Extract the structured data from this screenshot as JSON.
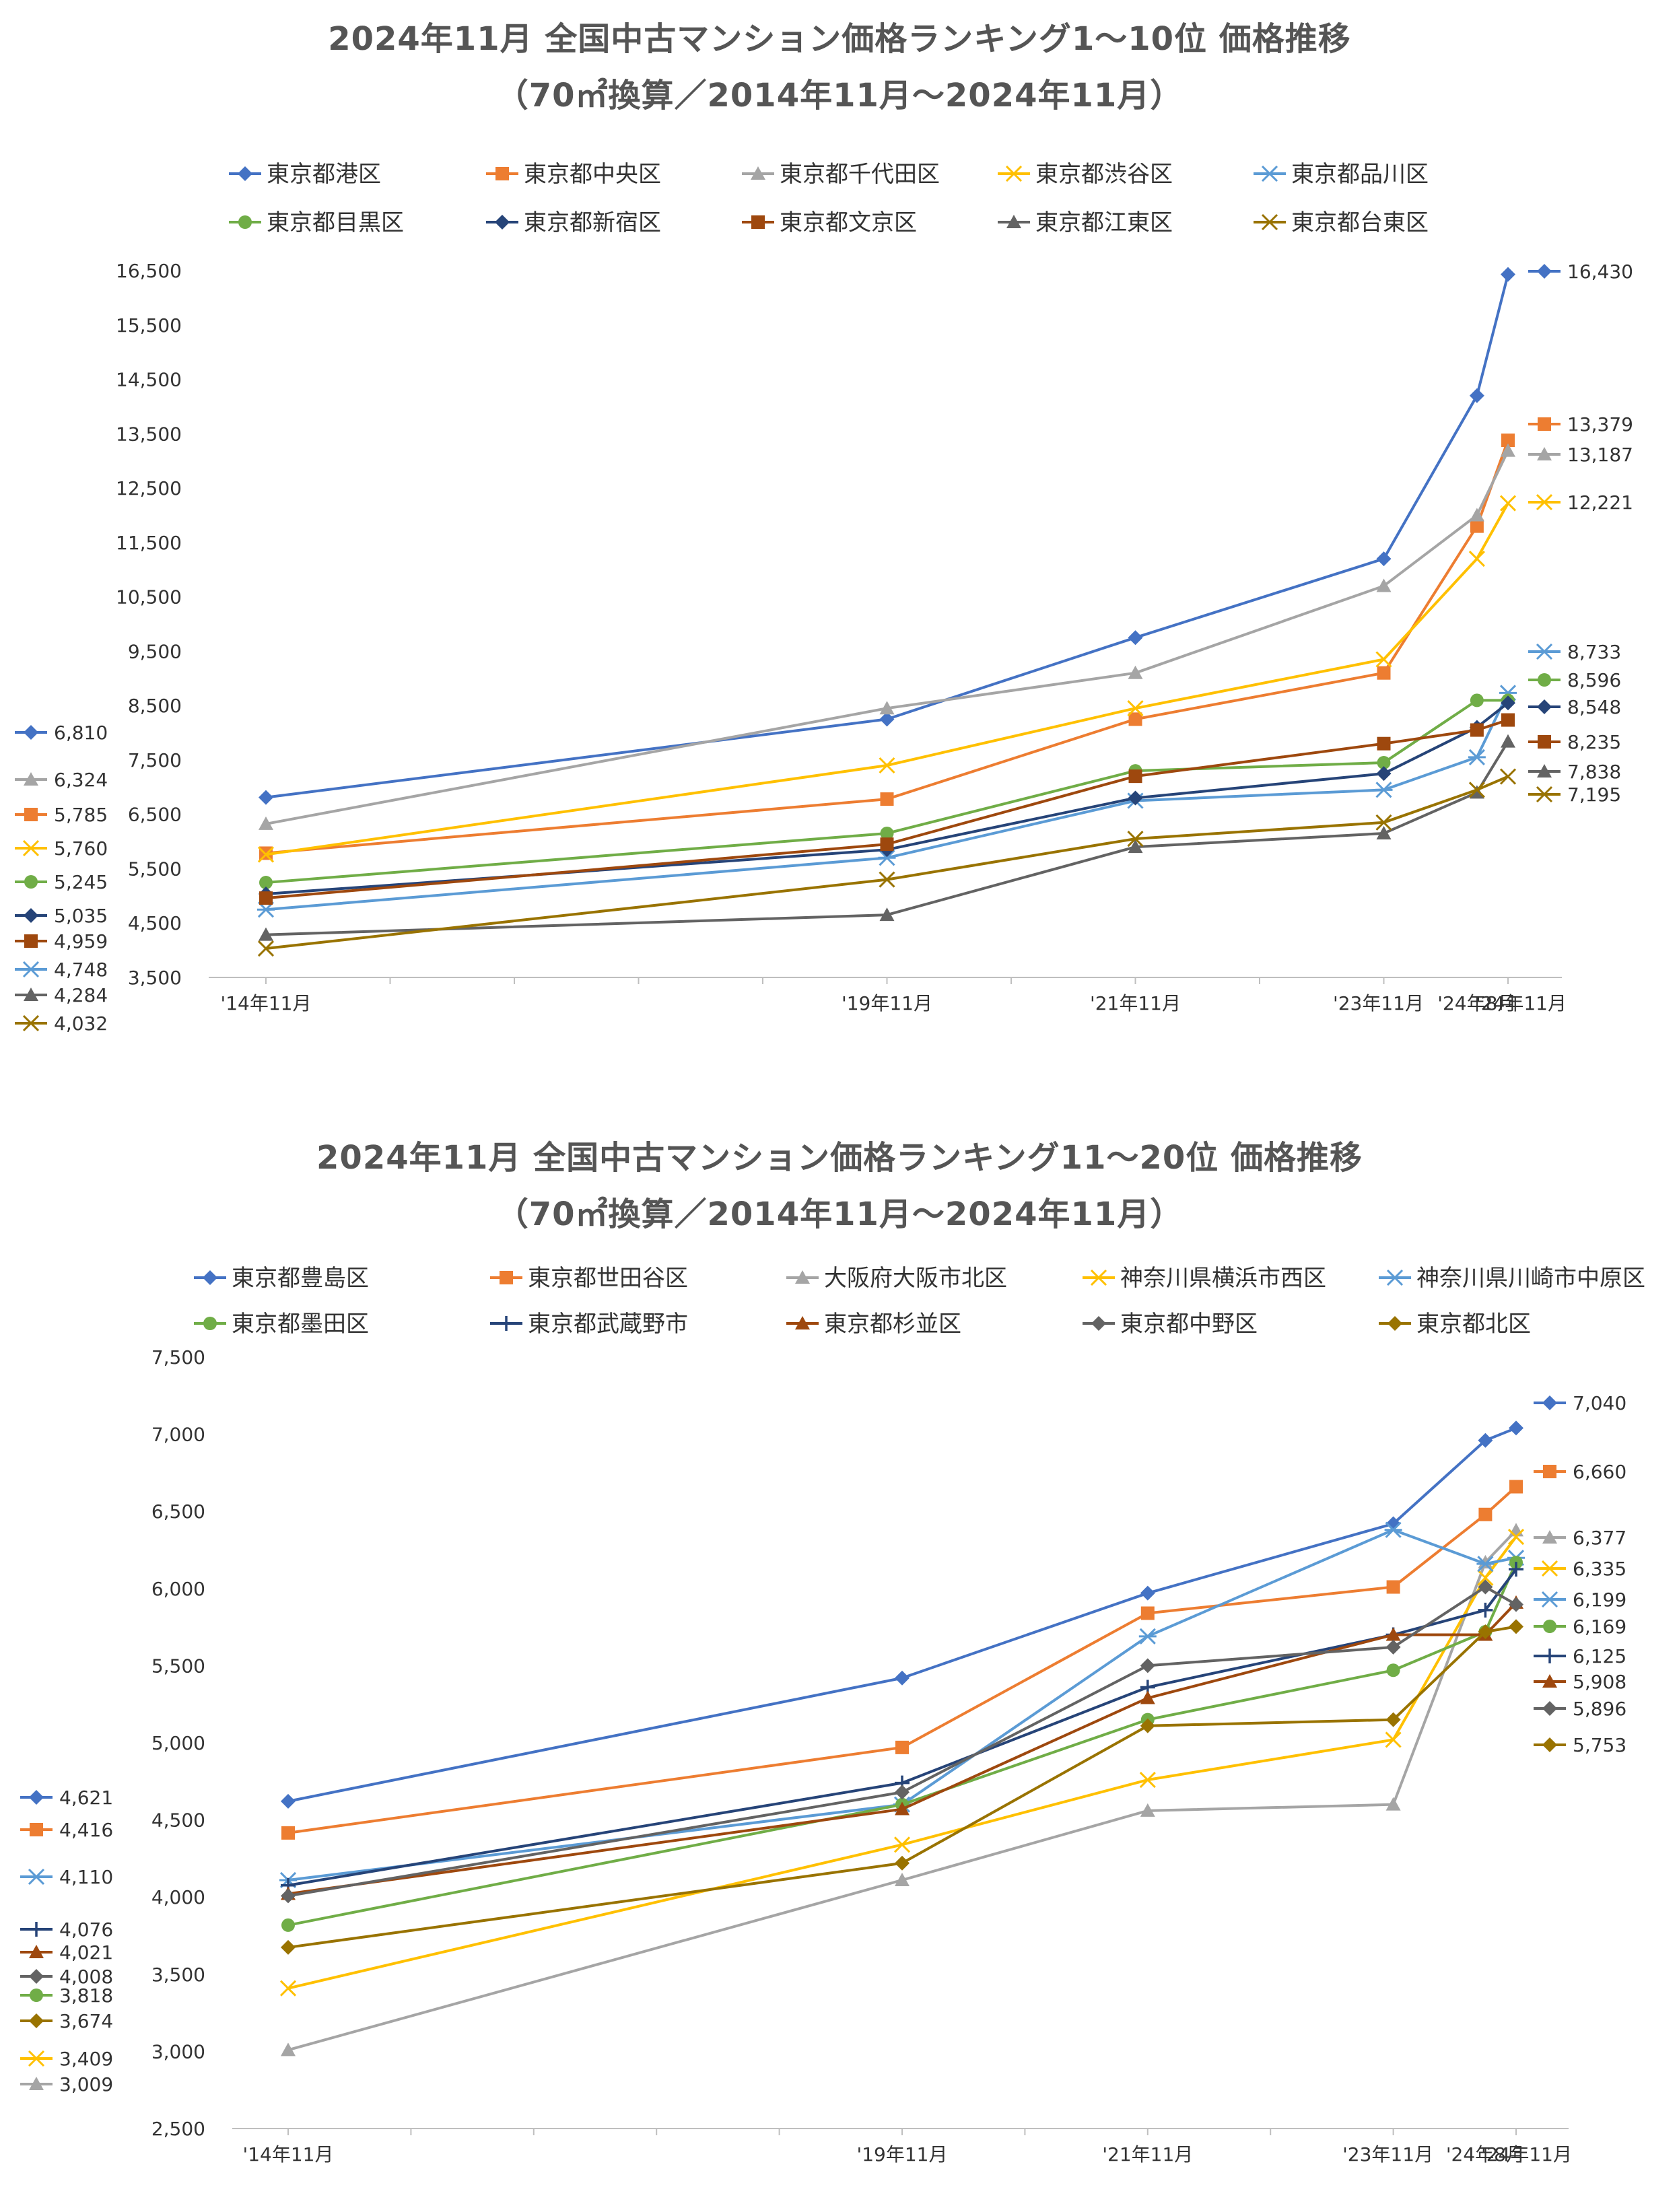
{
  "chart_data": [
    {
      "type": "line",
      "title": "2024年11月 全国中古マンション価格ランキング1～10位 価格推移",
      "subtitle": "（70㎡換算／2014年11月～2024年11月）",
      "categories": [
        "'14年11月",
        "'19年11月",
        "'21年11月",
        "'23年11月",
        "'24年8月",
        "'24年11月"
      ],
      "x_positions": [
        0,
        5,
        7,
        9,
        9.75,
        10
      ],
      "ylim": [
        3500,
        16500
      ],
      "yticks": [
        "3,500",
        "4,500",
        "5,500",
        "6,500",
        "7,500",
        "8,500",
        "9,500",
        "10,500",
        "11,500",
        "12,500",
        "13,500",
        "14,500",
        "15,500",
        "16,500"
      ],
      "legend_position": "top",
      "series": [
        {
          "name": "東京都港区",
          "color": "#4472C4",
          "marker": "diamond",
          "values": [
            6810,
            8250,
            9750,
            11200,
            14200,
            16430
          ],
          "start_label": "6,810",
          "end_label": "16,430"
        },
        {
          "name": "東京都中央区",
          "color": "#ED7D31",
          "marker": "square",
          "values": [
            5785,
            6780,
            8250,
            9100,
            11800,
            13379
          ],
          "start_label": "5,785",
          "end_label": "13,379"
        },
        {
          "name": "東京都千代田区",
          "color": "#A5A5A5",
          "marker": "triangle",
          "values": [
            6324,
            8450,
            9100,
            10700,
            12000,
            13187
          ],
          "start_label": "6,324",
          "end_label": "13,187"
        },
        {
          "name": "東京都渋谷区",
          "color": "#FFC000",
          "marker": "x",
          "values": [
            5760,
            7400,
            8450,
            9350,
            11200,
            12221
          ],
          "start_label": "5,760",
          "end_label": "12,221"
        },
        {
          "name": "東京都品川区",
          "color": "#5B9BD5",
          "marker": "star",
          "values": [
            4748,
            5700,
            6750,
            6950,
            7550,
            8733
          ],
          "start_label": "4,748",
          "end_label": "8,733"
        },
        {
          "name": "東京都目黒区",
          "color": "#70AD47",
          "marker": "circle",
          "values": [
            5245,
            6150,
            7300,
            7450,
            8596,
            8596
          ],
          "start_label": "5,245",
          "end_label": "8,596"
        },
        {
          "name": "東京都新宿区",
          "color": "#264478",
          "marker": "diamond",
          "values": [
            5035,
            5850,
            6800,
            7250,
            8100,
            8548
          ],
          "start_label": "5,035",
          "end_label": "8,548"
        },
        {
          "name": "東京都文京区",
          "color": "#9E480E",
          "marker": "square",
          "values": [
            4959,
            5950,
            7200,
            7800,
            8050,
            8235
          ],
          "start_label": "4,959",
          "end_label": "8,235"
        },
        {
          "name": "東京都江東区",
          "color": "#636363",
          "marker": "triangle",
          "values": [
            4284,
            4650,
            5900,
            6150,
            6900,
            7838
          ],
          "start_label": "4,284",
          "end_label": "7,838"
        },
        {
          "name": "東京都台東区",
          "color": "#997300",
          "marker": "x",
          "values": [
            4032,
            5300,
            6050,
            6350,
            6950,
            7195
          ],
          "start_label": "4,032",
          "end_label": "7,195"
        }
      ]
    },
    {
      "type": "line",
      "title": "2024年11月 全国中古マンション価格ランキング11～20位 価格推移",
      "subtitle": "（70㎡換算／2014年11月～2024年11月）",
      "categories": [
        "'14年11月",
        "'19年11月",
        "'21年11月",
        "'23年11月",
        "'24年8月",
        "'24年11月"
      ],
      "x_positions": [
        0,
        5,
        7,
        9,
        9.75,
        10
      ],
      "ylim": [
        2500,
        7500
      ],
      "yticks": [
        "2,500",
        "3,000",
        "3,500",
        "4,000",
        "4,500",
        "5,000",
        "5,500",
        "6,000",
        "6,500",
        "7,000",
        "7,500"
      ],
      "legend_position": "top",
      "series": [
        {
          "name": "東京都豊島区",
          "color": "#4472C4",
          "marker": "diamond",
          "values": [
            4621,
            5420,
            5970,
            6420,
            6960,
            7040
          ],
          "start_label": "4,621",
          "end_label": "7,040"
        },
        {
          "name": "東京都世田谷区",
          "color": "#ED7D31",
          "marker": "square",
          "values": [
            4416,
            4970,
            5840,
            6010,
            6480,
            6660
          ],
          "start_label": "4,416",
          "end_label": "6,660"
        },
        {
          "name": "大阪府大阪市北区",
          "color": "#A5A5A5",
          "marker": "triangle",
          "values": [
            3009,
            4110,
            4560,
            4600,
            6170,
            6377
          ],
          "start_label": "3,009",
          "end_label": "6,377"
        },
        {
          "name": "神奈川県横浜市西区",
          "color": "#FFC000",
          "marker": "x",
          "values": [
            3409,
            4340,
            4760,
            5020,
            6070,
            6335
          ],
          "start_label": "3,409",
          "end_label": "6,335"
        },
        {
          "name": "神奈川県川崎市中原区",
          "color": "#5B9BD5",
          "marker": "star",
          "values": [
            4110,
            4600,
            5690,
            6380,
            6160,
            6199
          ],
          "start_label": "4,110",
          "end_label": "6,199"
        },
        {
          "name": "東京都墨田区",
          "color": "#70AD47",
          "marker": "circle",
          "values": [
            3818,
            4600,
            5150,
            5470,
            5720,
            6169
          ],
          "start_label": "3,818",
          "end_label": "6,169"
        },
        {
          "name": "東京都武蔵野市",
          "color": "#264478",
          "marker": "plus",
          "values": [
            4076,
            4740,
            5360,
            5700,
            5860,
            6125
          ],
          "start_label": "4,076",
          "end_label": "6,125"
        },
        {
          "name": "東京都杉並区",
          "color": "#9E480E",
          "marker": "triangle",
          "values": [
            4021,
            4570,
            5290,
            5700,
            5700,
            5908
          ],
          "start_label": "4,021",
          "end_label": "5,908"
        },
        {
          "name": "東京都中野区",
          "color": "#636363",
          "marker": "diamond",
          "values": [
            4008,
            4680,
            5500,
            5620,
            6010,
            5896
          ],
          "start_label": "4,008",
          "end_label": "5,896"
        },
        {
          "name": "東京都北区",
          "color": "#997300",
          "marker": "diamond",
          "values": [
            3674,
            4220,
            5110,
            5150,
            5720,
            5753
          ],
          "start_label": "3,674",
          "end_label": "5,753"
        }
      ]
    }
  ]
}
